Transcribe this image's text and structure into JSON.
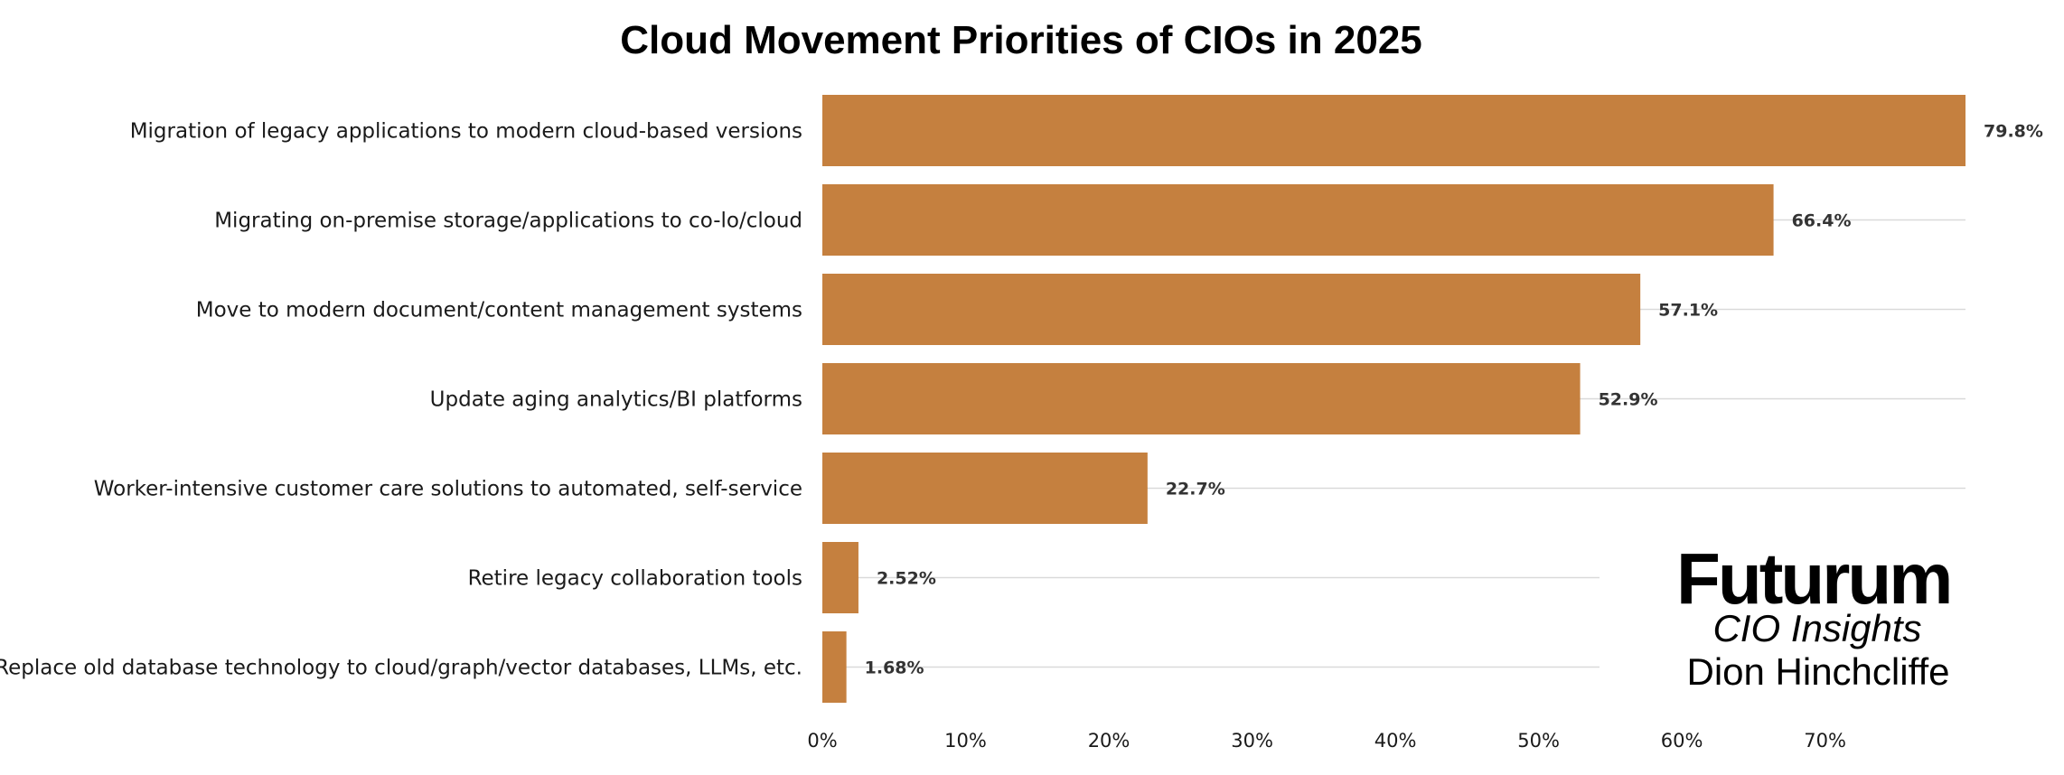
{
  "chart_data": {
    "type": "bar",
    "orientation": "horizontal",
    "title": "Cloud Movement Priorities of CIOs in 2025",
    "categories": [
      "Migration of legacy applications to modern cloud-based versions",
      "Migrating on-premise storage/applications to co-lo/cloud",
      "Move to modern document/content management systems",
      "Update aging analytics/BI platforms",
      "Worker-intensive customer care solutions to automated, self-service",
      "Retire legacy collaboration tools",
      "Replace old database technology to cloud/graph/vector databases, LLMs, etc."
    ],
    "values": [
      79.8,
      66.4,
      57.1,
      52.9,
      22.7,
      2.52,
      1.68
    ],
    "value_labels": [
      "79.8%",
      "66.4%",
      "57.1%",
      "52.9%",
      "22.7%",
      "2.52%",
      "1.68%"
    ],
    "xlim": [
      0,
      79.8
    ],
    "xticks": [
      0,
      10,
      20,
      30,
      40,
      50,
      60,
      70
    ],
    "xtick_labels": [
      "0%",
      "10%",
      "20%",
      "30%",
      "40%",
      "50%",
      "60%",
      "70%"
    ],
    "grid": true,
    "bar_color": "#C5803F",
    "grid_color": "#d9d9d9"
  },
  "branding": {
    "logo": "Futurum",
    "subtitle": "CIO Insights",
    "author": "Dion Hinchcliffe"
  }
}
